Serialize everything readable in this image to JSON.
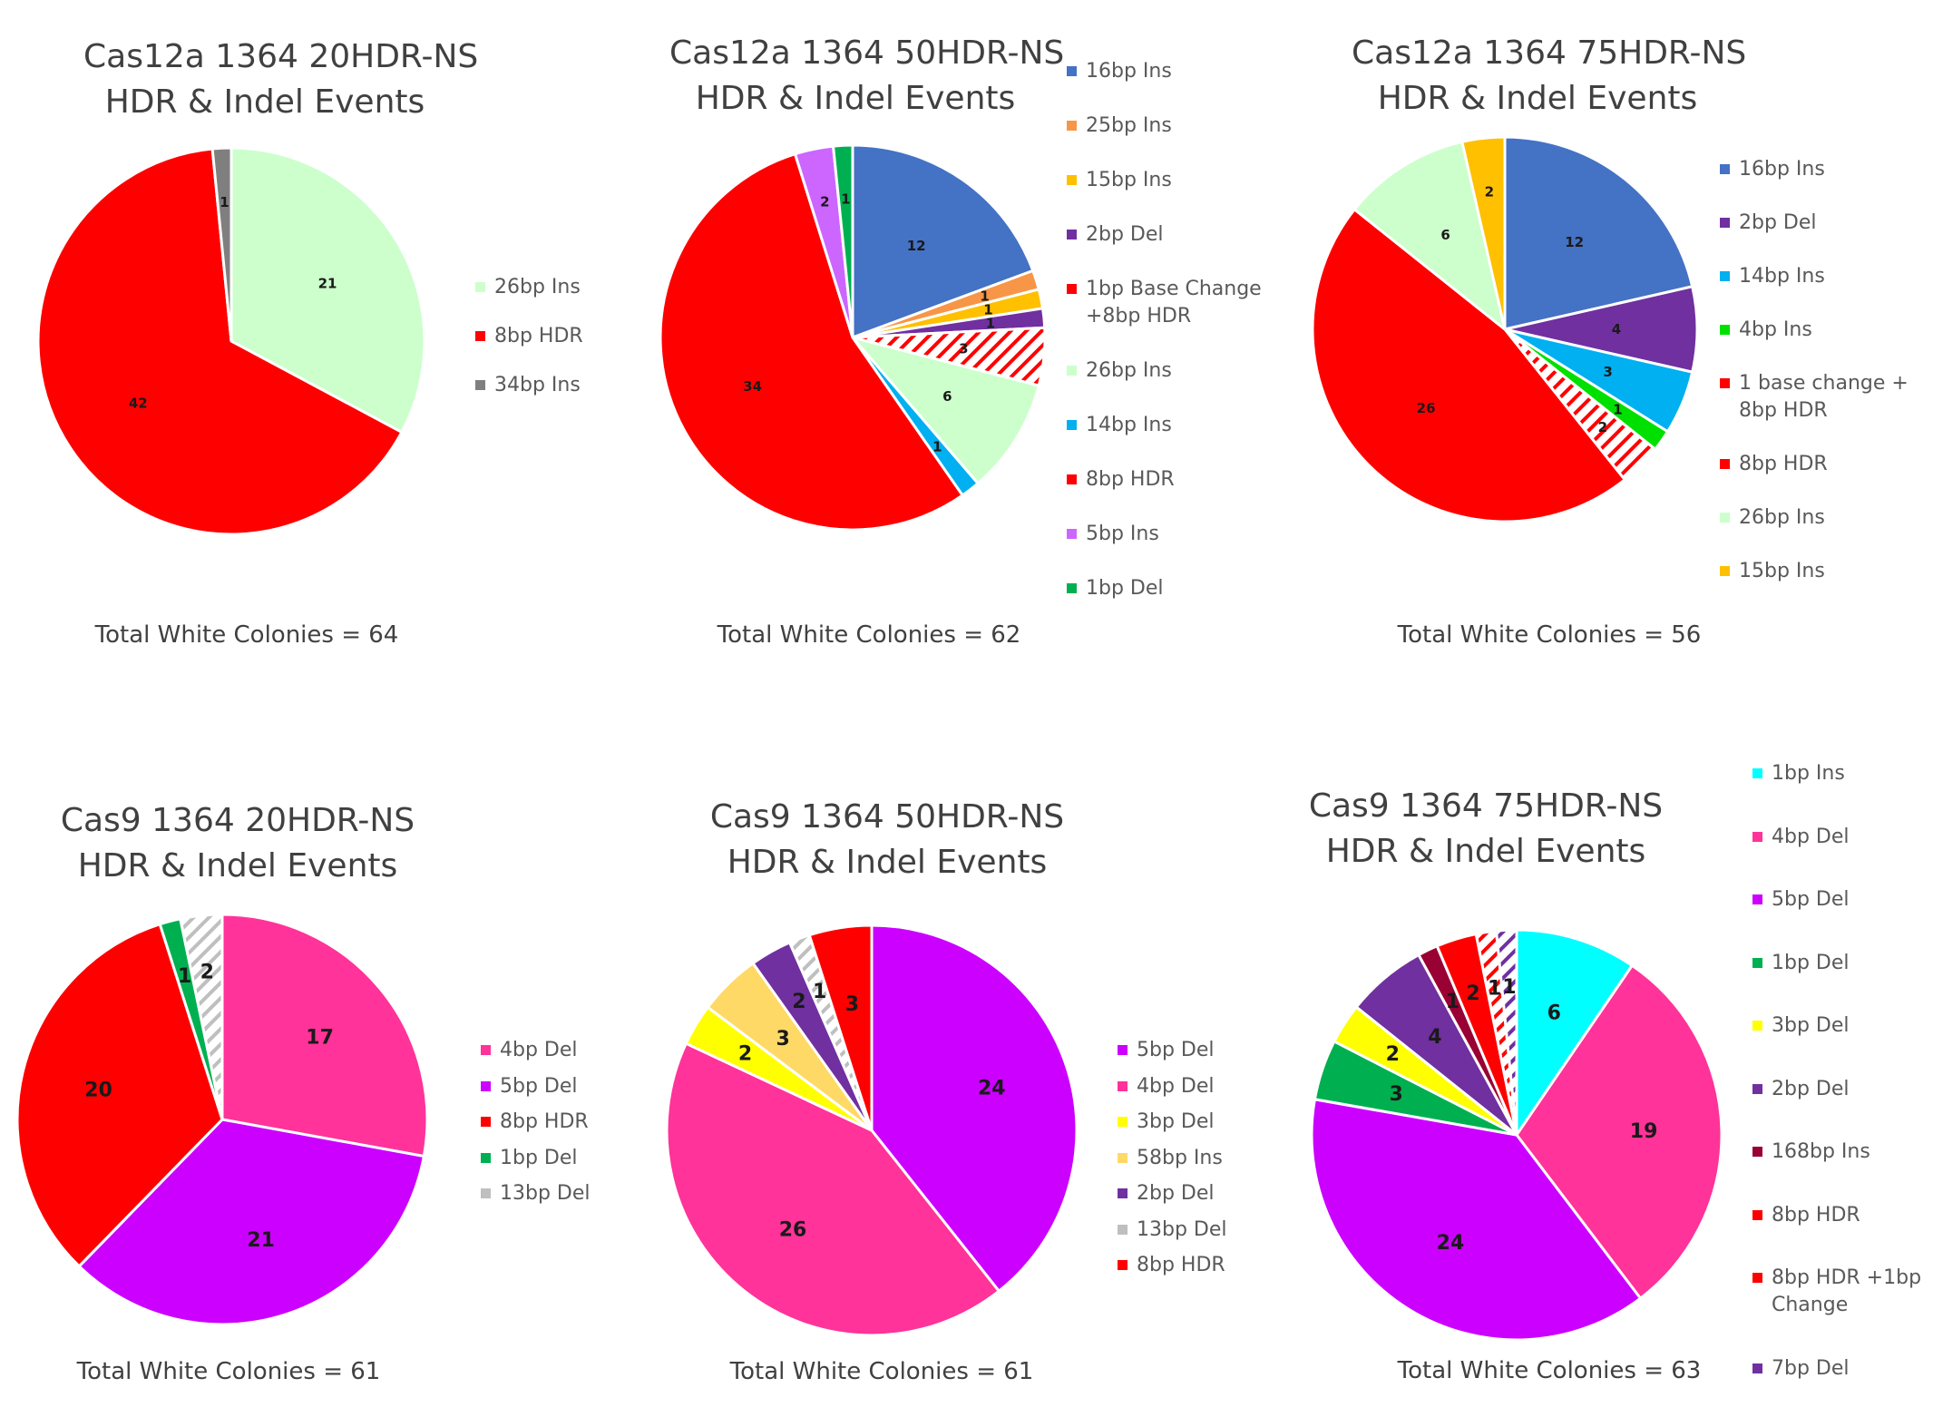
{
  "chart_data": [
    {
      "type": "pie",
      "title_lines": [
        "Cas12a 1364 20HDR-NS",
        "HDR & Indel Events"
      ],
      "total_label": "Total White Colonies = 64",
      "label_size": "small",
      "slices": [
        {
          "label": "26bp Ins",
          "value": 21,
          "color": "#CCFFCC"
        },
        {
          "label": "8bp HDR",
          "value": 42,
          "color": "#FF0000"
        },
        {
          "label": "34bp Ins",
          "value": 1,
          "color": "#7F7F7F"
        }
      ],
      "legend": [
        "26bp Ins",
        "8bp HDR",
        "34bp Ins"
      ],
      "legend_colors": [
        "#CCFFCC",
        "#FF0000",
        "#7F7F7F"
      ]
    },
    {
      "type": "pie",
      "title_lines": [
        "Cas12a 1364 50HDR-NS",
        "HDR & Indel Events"
      ],
      "total_label": "Total White Colonies = 62",
      "label_size": "small",
      "slices": [
        {
          "label": "16bp Ins",
          "value": 12,
          "color": "#4472C4"
        },
        {
          "label": "25bp Ins",
          "value": 1,
          "color": "#F79646"
        },
        {
          "label": "15bp Ins",
          "value": 1,
          "color": "#FFC000"
        },
        {
          "label": "2bp Del",
          "value": 1,
          "color": "#7030A0"
        },
        {
          "label": "1bp Base Change +8bp HDR",
          "value": 3,
          "color": "#FF0000",
          "hatch": true
        },
        {
          "label": "26bp Ins",
          "value": 6,
          "color": "#CCFFCC"
        },
        {
          "label": "14bp Ins",
          "value": 1,
          "color": "#00B0F0"
        },
        {
          "label": "8bp HDR",
          "value": 34,
          "color": "#FF0000"
        },
        {
          "label": "5bp Ins",
          "value": 2,
          "color": "#CC66FF"
        },
        {
          "label": "1bp Del",
          "value": 1,
          "color": "#00B050"
        }
      ],
      "legend": [
        "16bp Ins",
        "25bp Ins",
        "15bp Ins",
        "2bp Del",
        "1bp Base Change",
        "+8bp HDR",
        "26bp Ins",
        "14bp Ins",
        "8bp HDR",
        "5bp Ins",
        "1bp Del"
      ],
      "legend_colors": [
        "#4472C4",
        "#F79646",
        "#FFC000",
        "#7030A0",
        "#FF0000",
        "",
        "#CCFFCC",
        "#00B0F0",
        "#FF0000",
        "#CC66FF",
        "#00B050"
      ]
    },
    {
      "type": "pie",
      "title_lines": [
        "Cas12a 1364 75HDR-NS",
        "HDR & Indel Events"
      ],
      "total_label": "Total White Colonies = 56",
      "label_size": "small",
      "slices": [
        {
          "label": "16bp Ins",
          "value": 12,
          "color": "#4472C4"
        },
        {
          "label": "2bp Del",
          "value": 4,
          "color": "#7030A0"
        },
        {
          "label": "14bp Ins",
          "value": 3,
          "color": "#00B0F0"
        },
        {
          "label": "4bp Ins",
          "value": 1,
          "color": "#00E000"
        },
        {
          "label": "1 base change + 8bp HDR",
          "value": 2,
          "color": "#FF0000",
          "hatch": true
        },
        {
          "label": "8bp HDR",
          "value": 26,
          "color": "#FF0000"
        },
        {
          "label": "26bp Ins",
          "value": 6,
          "color": "#CCFFCC"
        },
        {
          "label": "15bp Ins",
          "value": 2,
          "color": "#FFC000"
        }
      ],
      "legend": [
        "16bp Ins",
        "2bp Del",
        "14bp Ins",
        "4bp Ins",
        "1 base change +",
        "8bp HDR",
        "8bp HDR",
        "26bp Ins",
        "15bp Ins"
      ],
      "legend_colors": [
        "#4472C4",
        "#7030A0",
        "#00B0F0",
        "#00E000",
        "#FF0000",
        "",
        "#FF0000",
        "#CCFFCC",
        "#FFC000"
      ]
    },
    {
      "type": "pie",
      "title_lines": [
        "Cas9 1364 20HDR-NS",
        "HDR & Indel Events"
      ],
      "total_label": "Total White Colonies = 61",
      "label_size": "large",
      "slices": [
        {
          "label": "4bp Del",
          "value": 17,
          "color": "#FF3399"
        },
        {
          "label": "5bp Del",
          "value": 21,
          "color": "#CC00FF"
        },
        {
          "label": "8bp HDR",
          "value": 20,
          "color": "#FF0000"
        },
        {
          "label": "1bp Del",
          "value": 1,
          "color": "#00B050"
        },
        {
          "label": "13bp Del",
          "value": 2,
          "color": "#BFBFBF",
          "hatch": true
        }
      ],
      "legend": [
        "4bp Del",
        "5bp Del",
        "8bp HDR",
        "1bp Del",
        "13bp Del"
      ],
      "legend_colors": [
        "#FF3399",
        "#CC00FF",
        "#FF0000",
        "#00B050",
        "#BFBFBF"
      ]
    },
    {
      "type": "pie",
      "title_lines": [
        "Cas9 1364 50HDR-NS",
        "HDR & Indel Events"
      ],
      "total_label": "Total White Colonies = 61",
      "label_size": "large",
      "slices": [
        {
          "label": "5bp Del",
          "value": 24,
          "color": "#CC00FF"
        },
        {
          "label": "4bp Del",
          "value": 26,
          "color": "#FF3399"
        },
        {
          "label": "3bp Del",
          "value": 2,
          "color": "#FFFF00"
        },
        {
          "label": "58bp Ins",
          "value": 3,
          "color": "#FFD966"
        },
        {
          "label": "2bp Del",
          "value": 2,
          "color": "#7030A0"
        },
        {
          "label": "13bp Del",
          "value": 1,
          "color": "#BFBFBF",
          "hatch": true
        },
        {
          "label": "8bp HDR",
          "value": 3,
          "color": "#FF0000"
        }
      ],
      "legend": [
        "5bp Del",
        "4bp Del",
        "3bp Del",
        "58bp Ins",
        "2bp Del",
        "13bp Del",
        "8bp HDR"
      ],
      "legend_colors": [
        "#CC00FF",
        "#FF3399",
        "#FFFF00",
        "#FFD966",
        "#7030A0",
        "#BFBFBF",
        "#FF0000"
      ]
    },
    {
      "type": "pie",
      "title_lines": [
        "Cas9 1364 75HDR-NS",
        "HDR & Indel Events"
      ],
      "total_label": "Total White Colonies = 63",
      "label_size": "large",
      "slices": [
        {
          "label": "1bp Ins",
          "value": 6,
          "color": "#00FFFF"
        },
        {
          "label": "4bp Del",
          "value": 19,
          "color": "#FF3399"
        },
        {
          "label": "5bp Del",
          "value": 24,
          "color": "#CC00FF"
        },
        {
          "label": "1bp Del",
          "value": 3,
          "color": "#00B050"
        },
        {
          "label": "3bp Del",
          "value": 2,
          "color": "#FFFF00"
        },
        {
          "label": "2bp Del",
          "value": 4,
          "color": "#7030A0"
        },
        {
          "label": "168bp Ins",
          "value": 1,
          "color": "#990033"
        },
        {
          "label": "8bp HDR",
          "value": 2,
          "color": "#FF0000"
        },
        {
          "label": "8bp HDR +1bp Change",
          "value": 1,
          "color": "#FF0000",
          "hatch": true
        },
        {
          "label": "7bp Del",
          "value": 1,
          "color": "#7030A0",
          "hatch": true
        }
      ],
      "legend": [
        "1bp Ins",
        "4bp Del",
        "5bp Del",
        "1bp Del",
        "3bp Del",
        "2bp Del",
        "168bp Ins",
        "8bp HDR",
        "8bp HDR +1bp",
        "Change",
        "7bp Del"
      ],
      "legend_colors": [
        "#00FFFF",
        "#FF3399",
        "#CC00FF",
        "#00B050",
        "#FFFF00",
        "#7030A0",
        "#990033",
        "#FF0000",
        "#FF0000",
        "",
        "#7030A0"
      ]
    }
  ]
}
